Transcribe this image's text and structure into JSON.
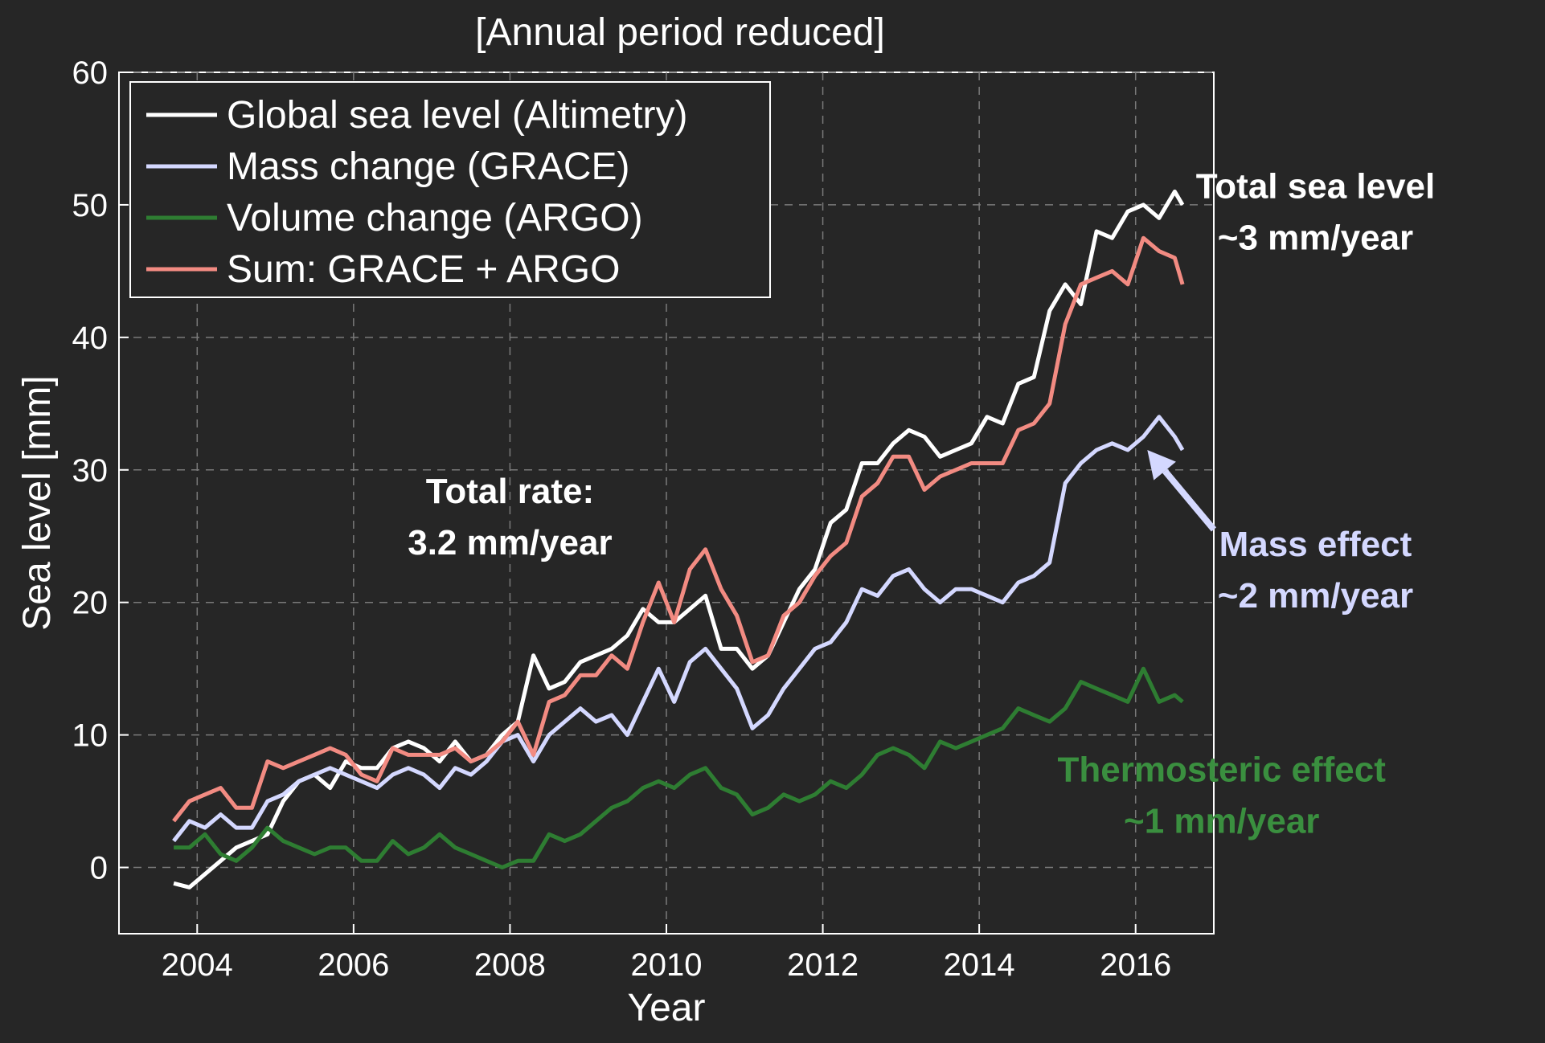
{
  "chart_data": {
    "type": "line",
    "title": "[Annual period reduced]",
    "xlabel": "Year",
    "ylabel": "Sea level [mm]",
    "xlim": [
      2003.0,
      2017.0
    ],
    "ylim": [
      -5,
      60
    ],
    "xticks": [
      2004,
      2006,
      2008,
      2010,
      2012,
      2014,
      2016
    ],
    "yticks": [
      0,
      10,
      20,
      30,
      40,
      50,
      60
    ],
    "grid": true,
    "legend_position": "top-left",
    "series": [
      {
        "name": "Global sea level (Altimetry)",
        "color": "#ffffff",
        "x": [
          2003.7,
          2003.9,
          2004.1,
          2004.3,
          2004.5,
          2004.7,
          2004.9,
          2005.1,
          2005.3,
          2005.5,
          2005.7,
          2005.9,
          2006.1,
          2006.3,
          2006.5,
          2006.7,
          2006.9,
          2007.1,
          2007.3,
          2007.5,
          2007.7,
          2007.9,
          2008.1,
          2008.3,
          2008.5,
          2008.7,
          2008.9,
          2009.1,
          2009.3,
          2009.5,
          2009.7,
          2009.9,
          2010.1,
          2010.3,
          2010.5,
          2010.7,
          2010.9,
          2011.1,
          2011.3,
          2011.5,
          2011.7,
          2011.9,
          2012.1,
          2012.3,
          2012.5,
          2012.7,
          2012.9,
          2013.1,
          2013.3,
          2013.5,
          2013.7,
          2013.9,
          2014.1,
          2014.3,
          2014.5,
          2014.7,
          2014.9,
          2015.1,
          2015.3,
          2015.5,
          2015.7,
          2015.9,
          2016.1,
          2016.3,
          2016.5,
          2016.6
        ],
        "y": [
          -1.2,
          -1.5,
          -0.5,
          0.5,
          1.5,
          2.0,
          2.5,
          5.0,
          6.5,
          7.0,
          6.0,
          8.0,
          7.5,
          7.5,
          9.0,
          9.5,
          9.0,
          8.0,
          9.5,
          8.0,
          8.5,
          10.0,
          11.0,
          16.0,
          13.5,
          14.0,
          15.5,
          16.0,
          16.5,
          17.5,
          19.5,
          18.5,
          18.5,
          19.5,
          20.5,
          16.5,
          16.5,
          15.0,
          16.0,
          18.5,
          21.0,
          22.5,
          26.0,
          27.0,
          30.5,
          30.5,
          32.0,
          33.0,
          32.5,
          31.0,
          31.5,
          32.0,
          34.0,
          33.5,
          36.5,
          37.0,
          42.0,
          44.0,
          42.5,
          48.0,
          47.5,
          49.5,
          50.0,
          49.0,
          51.0,
          50.0
        ]
      },
      {
        "name": "Mass change (GRACE)",
        "color": "#d4d8ff",
        "x": [
          2003.7,
          2003.9,
          2004.1,
          2004.3,
          2004.5,
          2004.7,
          2004.9,
          2005.1,
          2005.3,
          2005.5,
          2005.7,
          2005.9,
          2006.1,
          2006.3,
          2006.5,
          2006.7,
          2006.9,
          2007.1,
          2007.3,
          2007.5,
          2007.7,
          2007.9,
          2008.1,
          2008.3,
          2008.5,
          2008.7,
          2008.9,
          2009.1,
          2009.3,
          2009.5,
          2009.7,
          2009.9,
          2010.1,
          2010.3,
          2010.5,
          2010.7,
          2010.9,
          2011.1,
          2011.3,
          2011.5,
          2011.7,
          2011.9,
          2012.1,
          2012.3,
          2012.5,
          2012.7,
          2012.9,
          2013.1,
          2013.3,
          2013.5,
          2013.7,
          2013.9,
          2014.1,
          2014.3,
          2014.5,
          2014.7,
          2014.9,
          2015.1,
          2015.3,
          2015.5,
          2015.7,
          2015.9,
          2016.1,
          2016.3,
          2016.5,
          2016.6
        ],
        "y": [
          2.0,
          3.5,
          3.0,
          4.0,
          3.0,
          3.0,
          5.0,
          5.5,
          6.5,
          7.0,
          7.5,
          7.0,
          6.5,
          6.0,
          7.0,
          7.5,
          7.0,
          6.0,
          7.5,
          7.0,
          8.0,
          9.5,
          10.0,
          8.0,
          10.0,
          11.0,
          12.0,
          11.0,
          11.5,
          10.0,
          12.5,
          15.0,
          12.5,
          15.5,
          16.5,
          15.0,
          13.5,
          10.5,
          11.5,
          13.5,
          15.0,
          16.5,
          17.0,
          18.5,
          21.0,
          20.5,
          22.0,
          22.5,
          21.0,
          20.0,
          21.0,
          21.0,
          20.5,
          20.0,
          21.5,
          22.0,
          23.0,
          29.0,
          30.5,
          31.5,
          32.0,
          31.5,
          32.5,
          34.0,
          32.5,
          31.5
        ]
      },
      {
        "name": "Volume change (ARGO)",
        "color": "#2e7d32",
        "x": [
          2003.7,
          2003.9,
          2004.1,
          2004.3,
          2004.5,
          2004.7,
          2004.9,
          2005.1,
          2005.3,
          2005.5,
          2005.7,
          2005.9,
          2006.1,
          2006.3,
          2006.5,
          2006.7,
          2006.9,
          2007.1,
          2007.3,
          2007.5,
          2007.7,
          2007.9,
          2008.1,
          2008.3,
          2008.5,
          2008.7,
          2008.9,
          2009.1,
          2009.3,
          2009.5,
          2009.7,
          2009.9,
          2010.1,
          2010.3,
          2010.5,
          2010.7,
          2010.9,
          2011.1,
          2011.3,
          2011.5,
          2011.7,
          2011.9,
          2012.1,
          2012.3,
          2012.5,
          2012.7,
          2012.9,
          2013.1,
          2013.3,
          2013.5,
          2013.7,
          2013.9,
          2014.1,
          2014.3,
          2014.5,
          2014.7,
          2014.9,
          2015.1,
          2015.3,
          2015.5,
          2015.7,
          2015.9,
          2016.1,
          2016.3,
          2016.5,
          2016.6
        ],
        "y": [
          1.5,
          1.5,
          2.5,
          1.0,
          0.5,
          1.5,
          3.0,
          2.0,
          1.5,
          1.0,
          1.5,
          1.5,
          0.5,
          0.5,
          2.0,
          1.0,
          1.5,
          2.5,
          1.5,
          1.0,
          0.5,
          0.0,
          0.5,
          0.5,
          2.5,
          2.0,
          2.5,
          3.5,
          4.5,
          5.0,
          6.0,
          6.5,
          6.0,
          7.0,
          7.5,
          6.0,
          5.5,
          4.0,
          4.5,
          5.5,
          5.0,
          5.5,
          6.5,
          6.0,
          7.0,
          8.5,
          9.0,
          8.5,
          7.5,
          9.5,
          9.0,
          9.5,
          10.0,
          10.5,
          12.0,
          11.5,
          11.0,
          12.0,
          14.0,
          13.5,
          13.0,
          12.5,
          15.0,
          12.5,
          13.0,
          12.5
        ]
      },
      {
        "name": "Sum: GRACE + ARGO",
        "color": "#f28b82",
        "x": [
          2003.7,
          2003.9,
          2004.1,
          2004.3,
          2004.5,
          2004.7,
          2004.9,
          2005.1,
          2005.3,
          2005.5,
          2005.7,
          2005.9,
          2006.1,
          2006.3,
          2006.5,
          2006.7,
          2006.9,
          2007.1,
          2007.3,
          2007.5,
          2007.7,
          2007.9,
          2008.1,
          2008.3,
          2008.5,
          2008.7,
          2008.9,
          2009.1,
          2009.3,
          2009.5,
          2009.7,
          2009.9,
          2010.1,
          2010.3,
          2010.5,
          2010.7,
          2010.9,
          2011.1,
          2011.3,
          2011.5,
          2011.7,
          2011.9,
          2012.1,
          2012.3,
          2012.5,
          2012.7,
          2012.9,
          2013.1,
          2013.3,
          2013.5,
          2013.7,
          2013.9,
          2014.1,
          2014.3,
          2014.5,
          2014.7,
          2014.9,
          2015.1,
          2015.3,
          2015.5,
          2015.7,
          2015.9,
          2016.1,
          2016.3,
          2016.5,
          2016.6
        ],
        "y": [
          3.5,
          5.0,
          5.5,
          6.0,
          4.5,
          4.5,
          8.0,
          7.5,
          8.0,
          8.5,
          9.0,
          8.5,
          7.0,
          6.5,
          9.0,
          8.5,
          8.5,
          8.5,
          9.0,
          8.0,
          8.5,
          9.5,
          11.0,
          8.5,
          12.5,
          13.0,
          14.5,
          14.5,
          16.0,
          15.0,
          18.5,
          21.5,
          18.5,
          22.5,
          24.0,
          21.0,
          19.0,
          15.5,
          16.0,
          19.0,
          20.0,
          22.0,
          23.5,
          24.5,
          28.0,
          29.0,
          31.0,
          31.0,
          28.5,
          29.5,
          30.0,
          30.5,
          30.5,
          30.5,
          33.0,
          33.5,
          35.0,
          41.0,
          44.0,
          44.5,
          45.0,
          44.0,
          47.5,
          46.5,
          46.0,
          44.0
        ]
      }
    ],
    "annotations": [
      {
        "text_lines": [
          "Total rate:",
          "3.2 mm/year"
        ],
        "color": "#ffffff",
        "anchor": [
          2008.0,
          27.5
        ]
      },
      {
        "text_lines": [
          "Total sea level",
          "~3 mm/year"
        ],
        "color": "#ffffff",
        "anchor": [
          2018.3,
          50.5
        ]
      },
      {
        "text_lines": [
          "Mass effect",
          "~2 mm/year"
        ],
        "color": "#d4d8ff",
        "anchor": [
          2018.3,
          23.5
        ]
      },
      {
        "text_lines": [
          "Thermosteric effect",
          "~1 mm/year"
        ],
        "color": "#3a8f3f",
        "anchor": [
          2017.1,
          6.5
        ]
      }
    ],
    "arrow": {
      "color": "#d4d8ff",
      "from": [
        2017.0,
        25.5
      ],
      "to": [
        2016.15,
        31.5
      ]
    }
  }
}
